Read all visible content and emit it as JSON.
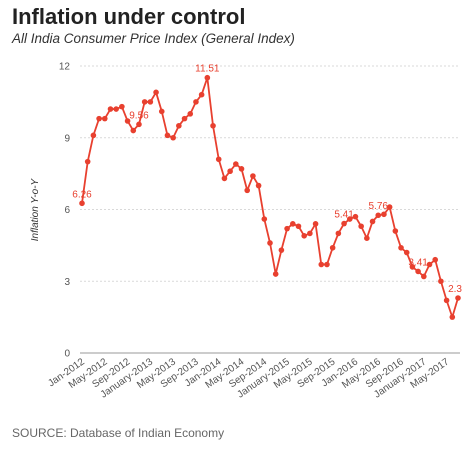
{
  "chart_data": {
    "type": "line",
    "title": "Inflation under control",
    "subtitle": "All India Consumer Price Index (General Index)",
    "ylabel": "Inflation Y-o-Y",
    "xlabel": "",
    "source": "SOURCE: Database of Indian Economy",
    "ylim": [
      0,
      12
    ],
    "yticks": [
      "0",
      "3",
      "6",
      "9",
      "12"
    ],
    "grid": "horizontal",
    "colors": {
      "line": "#e8402f",
      "grid": "#d9d9d9",
      "axis": "#999999"
    },
    "xtick_labels": [
      {
        "i": 0,
        "label": "Jan-2012"
      },
      {
        "i": 4,
        "label": "May-2012"
      },
      {
        "i": 8,
        "label": "Sep-2012"
      },
      {
        "i": 12,
        "label": "January-2013"
      },
      {
        "i": 16,
        "label": "May-2013"
      },
      {
        "i": 20,
        "label": "Sep-2013"
      },
      {
        "i": 24,
        "label": "Jan-2014"
      },
      {
        "i": 28,
        "label": "May-2014"
      },
      {
        "i": 32,
        "label": "Sep-2014"
      },
      {
        "i": 36,
        "label": "January-2015"
      },
      {
        "i": 40,
        "label": "May-2015"
      },
      {
        "i": 44,
        "label": "Sep-2015"
      },
      {
        "i": 48,
        "label": "Jan-2016"
      },
      {
        "i": 52,
        "label": "May-2016"
      },
      {
        "i": 56,
        "label": "Sep-2016"
      },
      {
        "i": 60,
        "label": "January-2017"
      },
      {
        "i": 64,
        "label": "May-2017"
      }
    ],
    "series": [
      {
        "values": [
          6.26,
          8.0,
          9.1,
          9.8,
          9.8,
          10.2,
          10.2,
          10.3,
          9.7,
          9.3,
          9.56,
          10.5,
          10.5,
          10.9,
          10.1,
          9.1,
          9.0,
          9.5,
          9.8,
          10.0,
          10.5,
          10.8,
          11.51,
          9.5,
          8.1,
          7.3,
          7.6,
          7.9,
          7.7,
          6.8,
          7.4,
          7.0,
          5.6,
          4.6,
          3.3,
          4.3,
          5.2,
          5.4,
          5.3,
          4.9,
          5.0,
          5.4,
          3.7,
          3.7,
          4.4,
          5.0,
          5.41,
          5.6,
          5.7,
          5.3,
          4.8,
          5.5,
          5.76,
          5.8,
          6.1,
          5.1,
          4.4,
          4.2,
          3.6,
          3.41,
          3.2,
          3.7,
          3.9,
          3.0,
          2.2,
          1.5,
          2.3
        ],
        "data_labels": [
          {
            "i": 0,
            "text": "6.26"
          },
          {
            "i": 10,
            "text": "9.56"
          },
          {
            "i": 22,
            "text": "11.51"
          },
          {
            "i": 46,
            "text": "5.41"
          },
          {
            "i": 52,
            "text": "5.76"
          },
          {
            "i": 59,
            "text": "3.41"
          },
          {
            "i": 66,
            "text": "2.3"
          }
        ]
      }
    ]
  }
}
